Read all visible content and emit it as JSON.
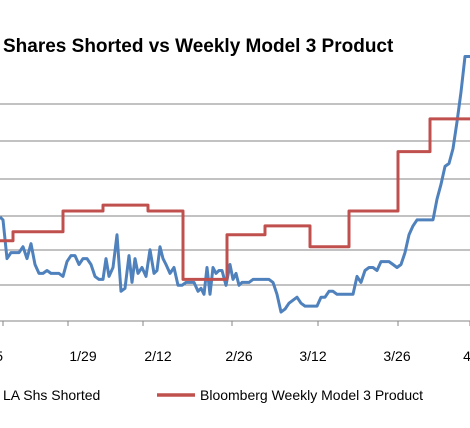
{
  "chart_data": {
    "type": "line",
    "title": "Shares Shorted vs Weekly Model 3 Product",
    "xlabel": "",
    "ylabel": "",
    "x_tick_labels": [
      "5",
      "1/29",
      "2/12",
      "2/26",
      "3/12",
      "3/26",
      "4"
    ],
    "grid": true,
    "legend_position": "bottom",
    "series": [
      {
        "name": "LA Shs Shorted",
        "color": "#4f81bd",
        "points": [
          [
            0,
            3.2
          ],
          [
            3,
            3.1
          ],
          [
            7,
            1.8
          ],
          [
            11,
            2.0
          ],
          [
            15,
            2.0
          ],
          [
            19,
            2.0
          ],
          [
            23,
            2.2
          ],
          [
            27,
            1.8
          ],
          [
            31,
            2.3
          ],
          [
            35,
            1.6
          ],
          [
            39,
            1.3
          ],
          [
            43,
            1.3
          ],
          [
            47,
            1.4
          ],
          [
            51,
            1.3
          ],
          [
            55,
            1.3
          ],
          [
            59,
            1.3
          ],
          [
            63,
            1.2
          ],
          [
            67,
            1.7
          ],
          [
            71,
            1.9
          ],
          [
            75,
            1.9
          ],
          [
            79,
            1.6
          ],
          [
            83,
            1.8
          ],
          [
            87,
            1.8
          ],
          [
            91,
            1.6
          ],
          [
            95,
            1.2
          ],
          [
            99,
            1.1
          ],
          [
            103,
            1.1
          ],
          [
            106,
            1.8
          ],
          [
            109,
            1.2
          ],
          [
            113,
            1.5
          ],
          [
            117,
            2.6
          ],
          [
            121,
            0.7
          ],
          [
            125,
            0.8
          ],
          [
            129,
            1.9
          ],
          [
            132,
            1.0
          ],
          [
            135,
            1.8
          ],
          [
            138,
            1.3
          ],
          [
            142,
            1.5
          ],
          [
            146,
            1.2
          ],
          [
            150,
            2.1
          ],
          [
            154,
            1.3
          ],
          [
            157,
            1.4
          ],
          [
            160,
            2.2
          ],
          [
            163,
            1.8
          ],
          [
            166,
            1.6
          ],
          [
            170,
            1.3
          ],
          [
            174,
            1.5
          ],
          [
            178,
            0.9
          ],
          [
            182,
            0.9
          ],
          [
            186,
            1.0
          ],
          [
            190,
            1.0
          ],
          [
            194,
            1.0
          ],
          [
            198,
            0.7
          ],
          [
            201,
            0.8
          ],
          [
            204,
            0.6
          ],
          [
            207,
            1.5
          ],
          [
            210,
            0.6
          ],
          [
            213,
            1.5
          ],
          [
            216,
            1.3
          ],
          [
            219,
            1.4
          ],
          [
            222,
            1.4
          ],
          [
            226,
            0.9
          ],
          [
            230,
            1.6
          ],
          [
            233,
            1.1
          ],
          [
            236,
            1.3
          ],
          [
            239,
            0.9
          ],
          [
            242,
            1.0
          ],
          [
            245,
            1.0
          ],
          [
            249,
            1.0
          ],
          [
            253,
            1.1
          ],
          [
            257,
            1.1
          ],
          [
            261,
            1.1
          ],
          [
            265,
            1.1
          ],
          [
            269,
            1.1
          ],
          [
            273,
            1.0
          ],
          [
            277,
            0.6
          ],
          [
            281,
            0.0
          ],
          [
            285,
            0.1
          ],
          [
            289,
            0.3
          ],
          [
            293,
            0.4
          ],
          [
            297,
            0.5
          ],
          [
            301,
            0.3
          ],
          [
            305,
            0.2
          ],
          [
            309,
            0.2
          ],
          [
            313,
            0.2
          ],
          [
            317,
            0.2
          ],
          [
            321,
            0.5
          ],
          [
            325,
            0.5
          ],
          [
            329,
            0.7
          ],
          [
            333,
            0.7
          ],
          [
            337,
            0.6
          ],
          [
            341,
            0.6
          ],
          [
            345,
            0.6
          ],
          [
            349,
            0.6
          ],
          [
            353,
            0.6
          ],
          [
            357,
            1.2
          ],
          [
            361,
            1.0
          ],
          [
            365,
            1.4
          ],
          [
            369,
            1.5
          ],
          [
            373,
            1.5
          ],
          [
            377,
            1.4
          ],
          [
            381,
            1.7
          ],
          [
            385,
            1.7
          ],
          [
            389,
            1.7
          ],
          [
            393,
            1.6
          ],
          [
            397,
            1.5
          ],
          [
            401,
            1.6
          ],
          [
            405,
            2.0
          ],
          [
            409,
            2.6
          ],
          [
            413,
            2.9
          ],
          [
            417,
            3.1
          ],
          [
            421,
            3.1
          ],
          [
            425,
            3.1
          ],
          [
            429,
            3.1
          ],
          [
            433,
            3.1
          ],
          [
            437,
            3.8
          ],
          [
            441,
            4.3
          ],
          [
            445,
            4.9
          ],
          [
            449,
            5.0
          ],
          [
            453,
            5.5
          ],
          [
            457,
            6.4
          ],
          [
            461,
            7.4
          ],
          [
            465,
            8.6
          ],
          [
            470,
            8.6
          ]
        ]
      },
      {
        "name": "Bloomberg Weekly Model 3 Product",
        "color": "#c0504d",
        "points": [
          [
            0,
            2.4
          ],
          [
            13,
            2.4
          ],
          [
            13,
            2.7
          ],
          [
            63,
            2.7
          ],
          [
            63,
            3.4
          ],
          [
            103,
            3.4
          ],
          [
            103,
            3.6
          ],
          [
            148,
            3.6
          ],
          [
            148,
            3.4
          ],
          [
            183,
            3.4
          ],
          [
            183,
            1.1
          ],
          [
            227,
            1.1
          ],
          [
            227,
            2.6
          ],
          [
            265,
            2.6
          ],
          [
            265,
            2.9
          ],
          [
            310,
            2.9
          ],
          [
            310,
            2.2
          ],
          [
            349,
            2.2
          ],
          [
            349,
            3.4
          ],
          [
            398,
            3.4
          ],
          [
            398,
            5.4
          ],
          [
            430,
            5.4
          ],
          [
            430,
            6.5
          ],
          [
            470,
            6.5
          ]
        ]
      }
    ],
    "ylim": [
      -0.3,
      10.5
    ],
    "xlim": [
      0,
      470
    ]
  }
}
